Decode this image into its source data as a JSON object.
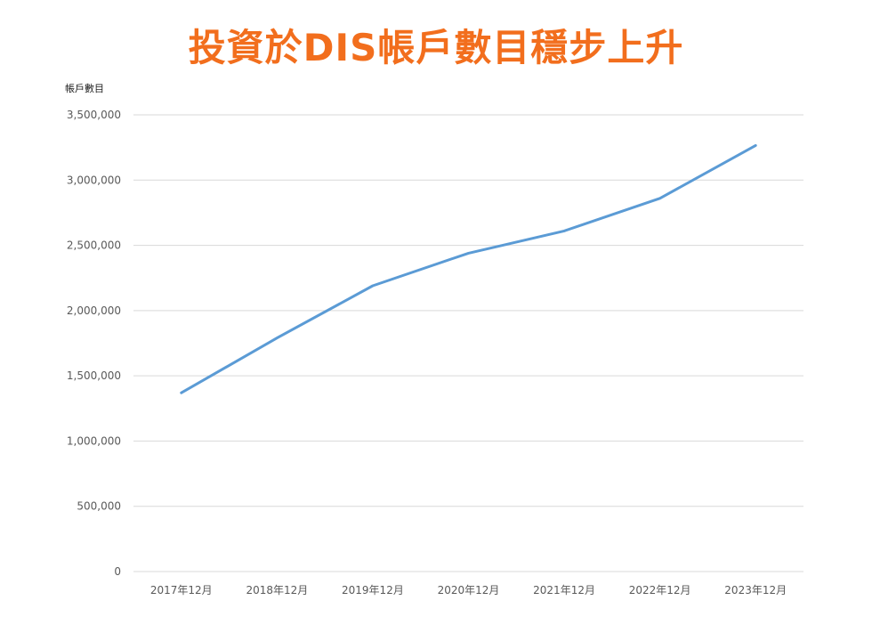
{
  "chart_data": {
    "type": "line",
    "title": "投資於DIS帳戶數目穩步上升",
    "ylabel": "帳戶數目",
    "xlabel": "",
    "categories": [
      "2017年12月",
      "2018年12月",
      "2019年12月",
      "2020年12月",
      "2021年12月",
      "2022年12月",
      "2023年12月"
    ],
    "series": [
      {
        "values": [
          1370000,
          1790000,
          2190000,
          2440000,
          2610000,
          2860000,
          3265000
        ],
        "color": "#5B9BD5"
      }
    ],
    "ylim": [
      0,
      3500000
    ],
    "yticks": [
      "0",
      "500,000",
      "1,000,000",
      "1,500,000",
      "2,000,000",
      "2,500,000",
      "3,000,000",
      "3,500,000"
    ],
    "ytick_values": [
      0,
      500000,
      1000000,
      1500000,
      2000000,
      2500000,
      3000000,
      3500000
    ],
    "grid": true,
    "legend": "none"
  },
  "colors": {
    "title": "#F26E1D",
    "line": "#5B9BD5",
    "grid": "#D9D9D9"
  }
}
